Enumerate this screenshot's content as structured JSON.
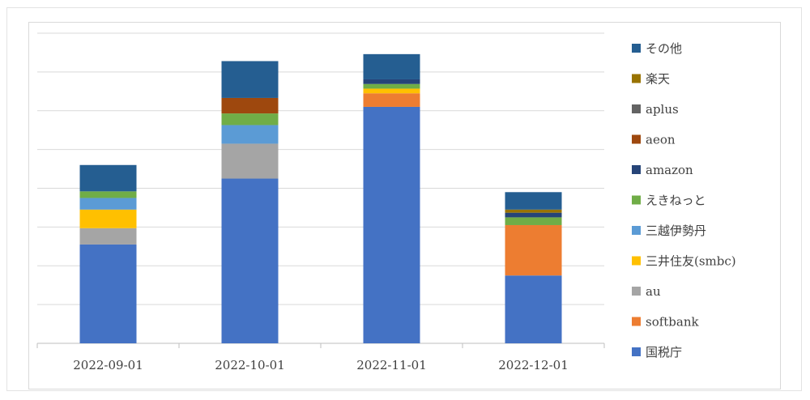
{
  "chart_data": {
    "type": "bar",
    "stacked": true,
    "categories": [
      "2022-09-01",
      "2022-10-01",
      "2022-11-01",
      "2022-12-01"
    ],
    "ylim": [
      0,
      8
    ],
    "y_axis_labels_visible": false,
    "grid": true,
    "legend_position": "right",
    "legend_order": [
      "その他",
      "楽天",
      "aplus",
      "aeon",
      "amazon",
      "えきねっと",
      "三越伊勢丹",
      "三井住友(smbc)",
      "au",
      "softbank",
      "国税庁"
    ],
    "series": [
      {
        "name": "国税庁",
        "color": "#4472C4",
        "values": [
          2.55,
          4.25,
          6.1,
          1.75
        ]
      },
      {
        "name": "softbank",
        "color": "#ED7D31",
        "values": [
          0,
          0,
          0.35,
          1.3
        ]
      },
      {
        "name": "au",
        "color": "#A5A5A5",
        "values": [
          0.42,
          0.9,
          0,
          0
        ]
      },
      {
        "name": "三井住友(smbc)",
        "color": "#FFC000",
        "values": [
          0.48,
          0,
          0.12,
          0
        ]
      },
      {
        "name": "三越伊勢丹",
        "color": "#5B9BD5",
        "values": [
          0.3,
          0.48,
          0,
          0
        ]
      },
      {
        "name": "えきねっと",
        "color": "#70AD47",
        "values": [
          0.17,
          0.3,
          0.12,
          0.2
        ]
      },
      {
        "name": "amazon",
        "color": "#264478",
        "values": [
          0,
          0,
          0.12,
          0.12
        ]
      },
      {
        "name": "aeon",
        "color": "#9E480E",
        "values": [
          0,
          0.4,
          0,
          0
        ]
      },
      {
        "name": "aplus",
        "color": "#636363",
        "values": [
          0,
          0,
          0,
          0
        ]
      },
      {
        "name": "楽天",
        "color": "#997300",
        "values": [
          0,
          0,
          0,
          0.08
        ]
      },
      {
        "name": "その他",
        "color": "#255E91",
        "values": [
          0.68,
          0.95,
          0.65,
          0.45
        ]
      }
    ]
  }
}
